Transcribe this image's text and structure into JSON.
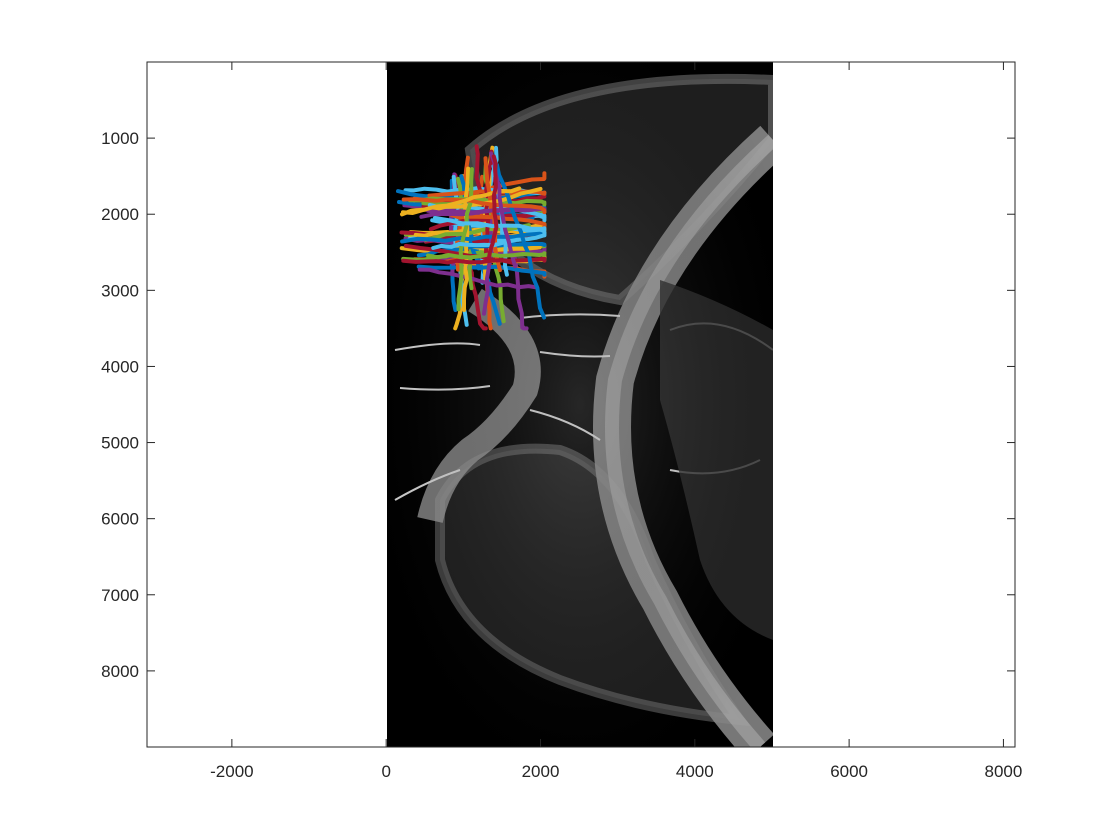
{
  "chart_data": {
    "type": "image-with-line-overlay",
    "title": "",
    "xlabel": "",
    "ylabel": "",
    "xlim": [
      -3100,
      8150
    ],
    "ylim": [
      9000,
      0
    ],
    "y_axis_direction": "reversed",
    "x_ticks": [
      -2000,
      0,
      2000,
      4000,
      6000,
      8000
    ],
    "x_tick_labels": [
      "-2000",
      "0",
      "2000",
      "4000",
      "6000",
      "8000"
    ],
    "y_ticks": [
      1000,
      2000,
      3000,
      4000,
      5000,
      6000,
      7000,
      8000
    ],
    "y_tick_labels": [
      "1000",
      "2000",
      "3000",
      "4000",
      "5000",
      "6000",
      "7000",
      "8000"
    ],
    "image_extent": {
      "x": [
        0,
        5000
      ],
      "y": [
        0,
        9000
      ]
    },
    "image_description": "grayscale microscopy section",
    "overlay_bbox": {
      "x": [
        0,
        2000
      ],
      "y": [
        1000,
        3600
      ]
    },
    "overlay_line_count": 70,
    "series_colors": [
      "#0072BD",
      "#D95319",
      "#EDB120",
      "#7E2F8E",
      "#77AC30",
      "#4DBEEE",
      "#A2142F"
    ],
    "grid": false,
    "legend": "none"
  }
}
